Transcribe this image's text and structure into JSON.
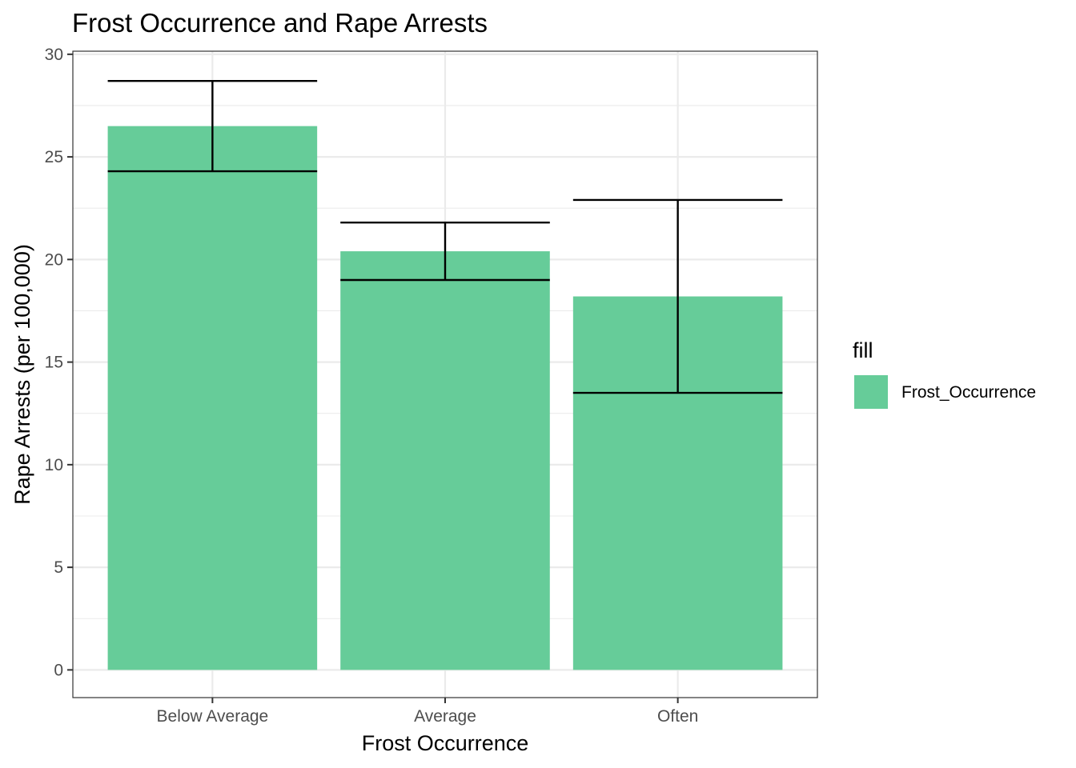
{
  "chart_data": {
    "type": "bar",
    "title": "Frost Occurrence and Rape Arrests",
    "xlabel": "Frost Occurrence",
    "ylabel": "Rape Arrests (per 100,000)",
    "categories": [
      "Below Average",
      "Average",
      "Often"
    ],
    "series": [
      {
        "name": "Frost_Occurrence",
        "values": [
          26.5,
          20.4,
          18.2
        ],
        "error_low": [
          24.3,
          19.0,
          13.5
        ],
        "error_high": [
          28.7,
          21.8,
          22.9
        ]
      }
    ],
    "ylim": [
      -1.35,
      30.15
    ],
    "yticks": [
      0,
      5,
      10,
      15,
      20,
      25,
      30
    ],
    "ytick_labels": [
      "0",
      "5",
      "10",
      "15",
      "20",
      "25",
      "30"
    ],
    "grid": true,
    "legend": {
      "title": "fill",
      "position": "right"
    },
    "colors": {
      "bar": "#66cc99",
      "errorbar": "#000000",
      "grid": "#ebebeb",
      "panel_border": "#333333"
    }
  }
}
